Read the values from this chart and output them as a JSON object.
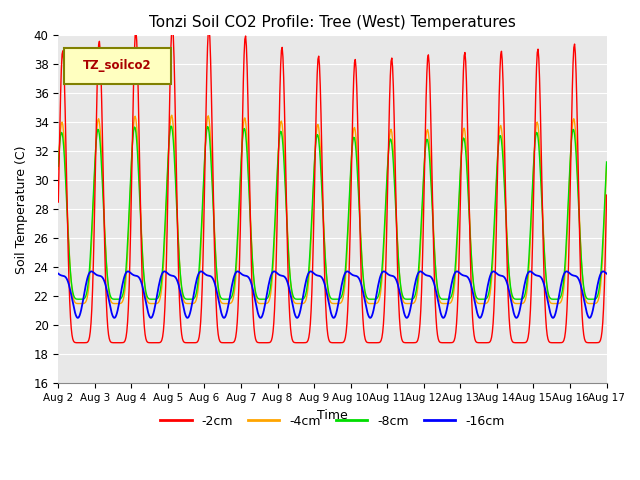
{
  "title": "Tonzi Soil CO2 Profile: Tree (West) Temperatures",
  "xlabel": "Time",
  "ylabel": "Soil Temperature (C)",
  "ylim": [
    16,
    40
  ],
  "yticks": [
    16,
    18,
    20,
    22,
    24,
    26,
    28,
    30,
    32,
    34,
    36,
    38,
    40
  ],
  "legend_label": "TZ_soilco2",
  "colors": {
    "-2cm": "#ff0000",
    "-4cm": "#ffa500",
    "-8cm": "#00dd00",
    "-16cm": "#0000ff"
  },
  "background_color": "#e8e8e8",
  "fig_background": "#ffffff",
  "legend_entry_colors": [
    "#ff0000",
    "#ffa500",
    "#00dd00",
    "#0000ff"
  ],
  "legend_entries": [
    "-2cm",
    "-4cm",
    "-8cm",
    "-16cm"
  ],
  "lw_thin": 1.0,
  "lw_blue": 1.3
}
